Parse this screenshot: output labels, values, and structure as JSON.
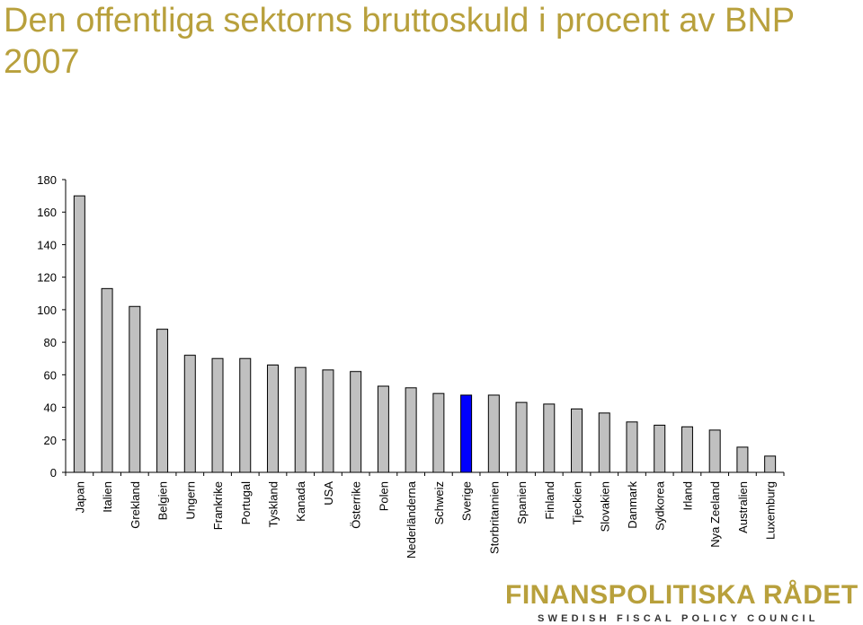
{
  "chart_data": {
    "type": "bar",
    "title": "Den offentliga sektorns bruttoskuld i procent av BNP 2007",
    "xlabel": "",
    "ylabel": "",
    "ylim": [
      0,
      180
    ],
    "yticks": [
      0,
      20,
      40,
      60,
      80,
      100,
      120,
      140,
      160,
      180
    ],
    "grid": false,
    "categories": [
      "Japan",
      "Italien",
      "Grekland",
      "Belgien",
      "Ungern",
      "Frankrike",
      "Portugal",
      "Tyskland",
      "Kanada",
      "USA",
      "Österrike",
      "Polen",
      "Nederländerna",
      "Schweiz",
      "Sverige",
      "Storbritannien",
      "Spanien",
      "Finland",
      "Tjeckien",
      "Slovakien",
      "Danmark",
      "Sydkorea",
      "Irland",
      "Nya Zeeland",
      "Australien",
      "Luxemburg"
    ],
    "values": [
      170,
      113,
      102,
      88,
      72,
      70,
      70,
      66,
      64.5,
      63,
      62,
      53,
      52,
      48.5,
      47.5,
      47.5,
      43,
      42,
      39,
      36.5,
      31,
      29,
      28,
      26,
      15.5,
      10
    ],
    "colors": {
      "default": "#c0c0c0",
      "highlight": "#0000ff",
      "highlight_category": "Sverige",
      "outline": "#000000"
    }
  },
  "brand": {
    "name": "FINANSPOLITISKA RÅDET",
    "subtitle": "SWEDISH FISCAL POLICY COUNCIL"
  }
}
